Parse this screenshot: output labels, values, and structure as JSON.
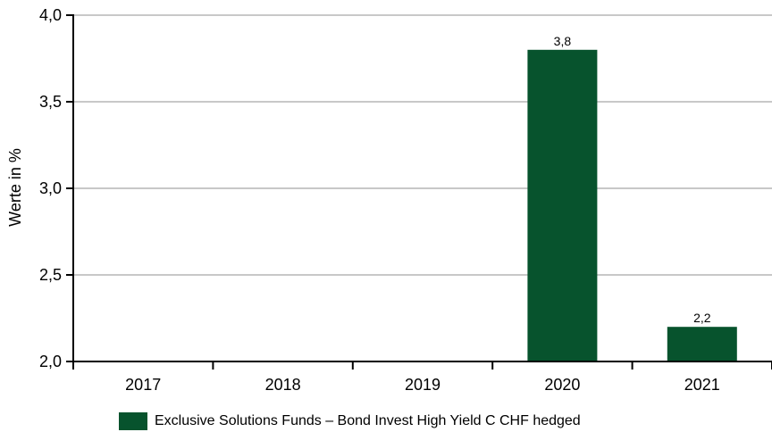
{
  "chart_data": {
    "type": "bar",
    "ylabel": "Werte in %",
    "categories": [
      "2017",
      "2018",
      "2019",
      "2020",
      "2021"
    ],
    "series": [
      {
        "name": "Exclusive Solutions Funds – Bond Invest High Yield C CHF hedged",
        "values": [
          null,
          null,
          null,
          3.8,
          2.2
        ],
        "labels": [
          "",
          "",
          "",
          "3,8",
          "2,2"
        ],
        "color": "#07532d"
      }
    ],
    "ylim": [
      2.0,
      4.0
    ],
    "yticks": [
      2.0,
      2.5,
      3.0,
      3.5,
      4.0
    ],
    "ytick_labels": [
      "2,0",
      "2,5",
      "3,0",
      "3,5",
      "4,0"
    ],
    "grid": true,
    "legend_position": "bottom"
  }
}
